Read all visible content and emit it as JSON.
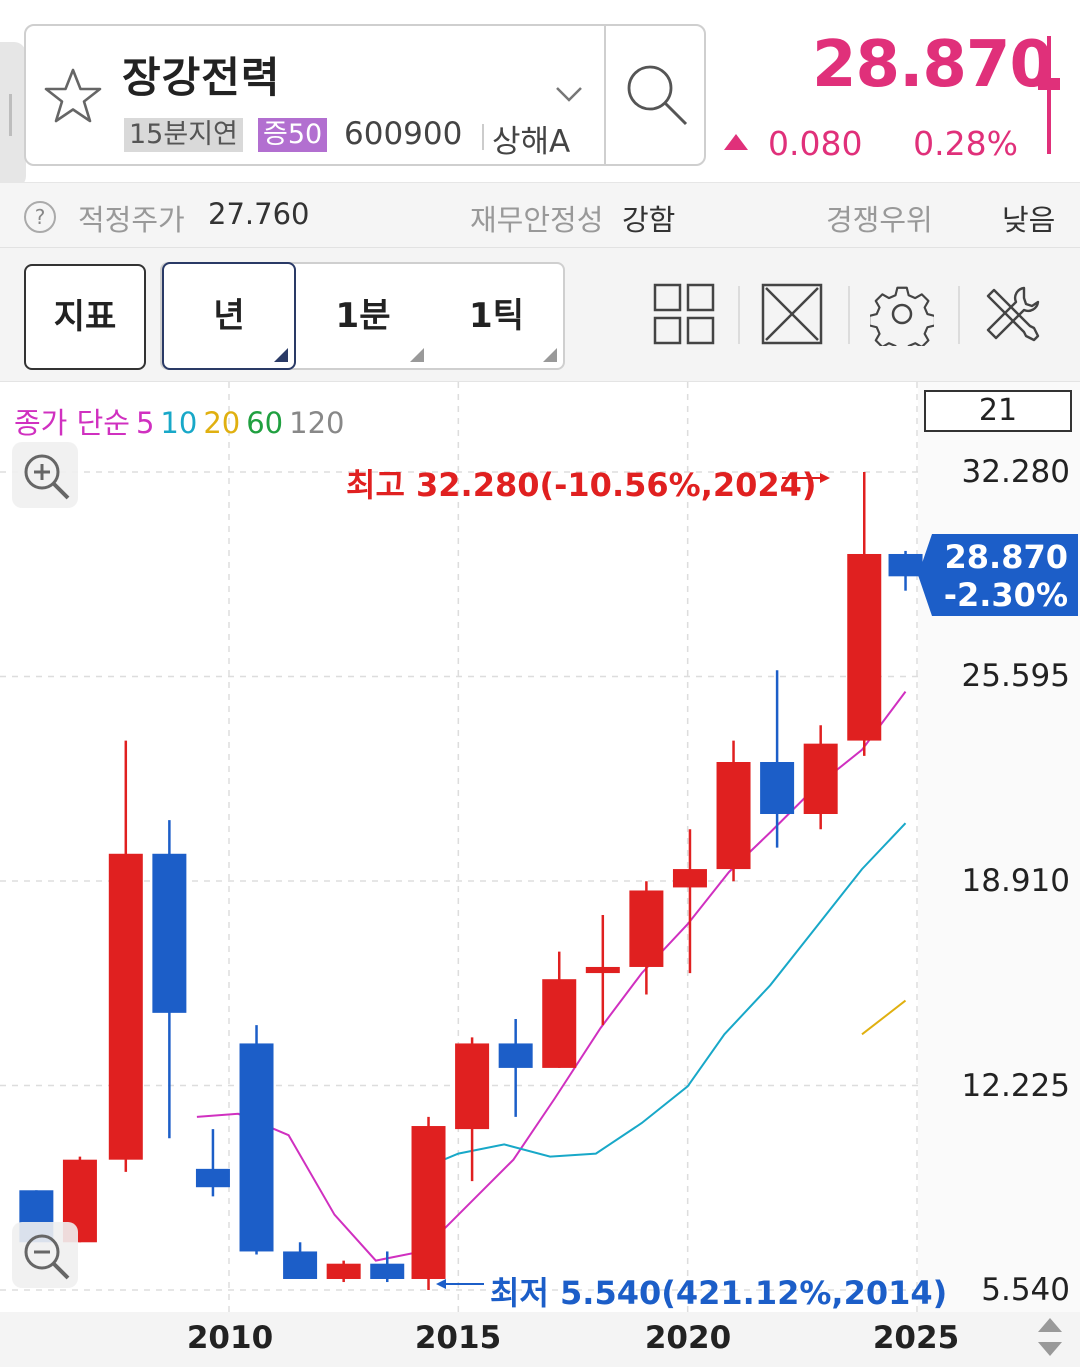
{
  "stock": {
    "name": "장강전력",
    "delay_tag": "15분지연",
    "index_tag": "증50",
    "code": "600900",
    "market": "상해A"
  },
  "quote": {
    "price": "28.870",
    "change": "0.080",
    "change_rate": "0.28%",
    "direction": "up",
    "color": "#e0307a"
  },
  "info_bar": {
    "fair_price_label": "적정주가",
    "fair_price_value": "27.760",
    "financial_stability_label": "재무안정성",
    "financial_stability_value": "강함",
    "competitive_label": "경쟁우위",
    "competitive_value": "낮음"
  },
  "toolbar": {
    "indicator_label": "지표",
    "periods": [
      {
        "label": "년",
        "selected": true
      },
      {
        "label": "1분",
        "selected": false
      },
      {
        "label": "1틱",
        "selected": false
      }
    ],
    "icons": [
      "layout-grid-icon",
      "expand-icon",
      "settings-gear-icon",
      "tools-icon"
    ]
  },
  "chart": {
    "ma_legend": {
      "prefix": "종가 단순",
      "periods": [
        {
          "label": "5",
          "color": "#d030c0"
        },
        {
          "label": "10",
          "color": "#18a8c8"
        },
        {
          "label": "20",
          "color": "#e0b010"
        },
        {
          "label": "60",
          "color": "#20a040"
        },
        {
          "label": "120",
          "color": "#888888"
        }
      ]
    },
    "candle_count": "21",
    "last_price": "28.870",
    "last_change": "-2.30%",
    "high_annotation": "최고 32.280(-10.56%,2024)",
    "low_annotation": "최저 5.540(421.12%,2014)",
    "y_ticks": [
      "32.280",
      "25.595",
      "18.910",
      "12.225",
      "5.540"
    ],
    "x_ticks": [
      "2010",
      "2015",
      "2020",
      "2025"
    ]
  },
  "chart_data": {
    "type": "candlestick",
    "ylim": [
      5.54,
      32.28
    ],
    "up_color": "#e02020",
    "down_color": "#1c5ec8",
    "candles": [
      {
        "x": 2005.8,
        "open": 8.8,
        "high": 8.8,
        "low": 7.3,
        "close": 7.1
      },
      {
        "x": 2006.75,
        "open": 7.1,
        "high": 9.9,
        "low": 7.1,
        "close": 9.8
      },
      {
        "x": 2007.75,
        "open": 9.8,
        "high": 23.5,
        "low": 9.4,
        "close": 19.8
      },
      {
        "x": 2008.7,
        "open": 19.8,
        "high": 20.9,
        "low": 10.5,
        "close": 14.6
      },
      {
        "x": 2009.65,
        "open": 9.5,
        "high": 10.8,
        "low": 8.6,
        "close": 8.9
      },
      {
        "x": 2010.6,
        "open": 13.6,
        "high": 14.2,
        "low": 6.7,
        "close": 6.8
      },
      {
        "x": 2011.55,
        "open": 6.8,
        "high": 7.1,
        "low": 5.9,
        "close": 5.9
      },
      {
        "x": 2012.5,
        "open": 5.9,
        "high": 6.5,
        "low": 5.8,
        "close": 6.4
      },
      {
        "x": 2013.45,
        "open": 6.4,
        "high": 6.8,
        "low": 5.8,
        "close": 5.9
      },
      {
        "x": 2014.35,
        "open": 5.9,
        "high": 11.2,
        "low": 5.54,
        "close": 10.9
      },
      {
        "x": 2015.3,
        "open": 10.8,
        "high": 13.8,
        "low": 9.1,
        "close": 13.6
      },
      {
        "x": 2016.25,
        "open": 13.6,
        "high": 14.4,
        "low": 11.2,
        "close": 12.8
      },
      {
        "x": 2017.2,
        "open": 12.8,
        "high": 16.6,
        "low": 12.8,
        "close": 15.7
      },
      {
        "x": 2018.15,
        "open": 15.9,
        "high": 17.8,
        "low": 14.2,
        "close": 16.1
      },
      {
        "x": 2019.1,
        "open": 16.1,
        "high": 18.9,
        "low": 15.2,
        "close": 18.6
      },
      {
        "x": 2020.05,
        "open": 18.7,
        "high": 20.6,
        "low": 15.9,
        "close": 19.3
      },
      {
        "x": 2021.0,
        "open": 19.3,
        "high": 23.5,
        "low": 18.9,
        "close": 22.8
      },
      {
        "x": 2021.95,
        "open": 22.8,
        "high": 25.8,
        "low": 20.0,
        "close": 21.1
      },
      {
        "x": 2022.9,
        "open": 21.1,
        "high": 24.0,
        "low": 20.6,
        "close": 23.4
      },
      {
        "x": 2023.85,
        "open": 23.5,
        "high": 32.28,
        "low": 23.0,
        "close": 29.6
      },
      {
        "x": 2024.75,
        "open": 29.6,
        "high": 29.7,
        "low": 28.4,
        "close": 28.87
      }
    ],
    "ma5": [
      {
        "x": 2009.3,
        "y": 11.2
      },
      {
        "x": 2010.2,
        "y": 11.3
      },
      {
        "x": 2011.3,
        "y": 10.6
      },
      {
        "x": 2012.3,
        "y": 8.0
      },
      {
        "x": 2013.2,
        "y": 6.5
      },
      {
        "x": 2014.2,
        "y": 6.8
      },
      {
        "x": 2015.2,
        "y": 8.3
      },
      {
        "x": 2016.2,
        "y": 9.8
      },
      {
        "x": 2017.1,
        "y": 11.8
      },
      {
        "x": 2018.1,
        "y": 14.1
      },
      {
        "x": 2019.0,
        "y": 15.9
      },
      {
        "x": 2020.0,
        "y": 17.5
      },
      {
        "x": 2020.9,
        "y": 19.2
      },
      {
        "x": 2021.8,
        "y": 20.5
      },
      {
        "x": 2022.8,
        "y": 22.0
      },
      {
        "x": 2023.8,
        "y": 23.2
      },
      {
        "x": 2024.75,
        "y": 25.1
      }
    ],
    "ma10": [
      {
        "x": 2014.2,
        "y": 9.5
      },
      {
        "x": 2015.0,
        "y": 10.0
      },
      {
        "x": 2016.0,
        "y": 10.3
      },
      {
        "x": 2017.0,
        "y": 9.9
      },
      {
        "x": 2018.0,
        "y": 10.0
      },
      {
        "x": 2019.0,
        "y": 11.0
      },
      {
        "x": 2020.0,
        "y": 12.2
      },
      {
        "x": 2020.8,
        "y": 13.9
      },
      {
        "x": 2021.8,
        "y": 15.5
      },
      {
        "x": 2022.8,
        "y": 17.4
      },
      {
        "x": 2023.8,
        "y": 19.3
      },
      {
        "x": 2024.75,
        "y": 20.8
      }
    ],
    "ma20": [
      {
        "x": 2023.8,
        "y": 13.9
      },
      {
        "x": 2024.75,
        "y": 15.0
      }
    ]
  }
}
